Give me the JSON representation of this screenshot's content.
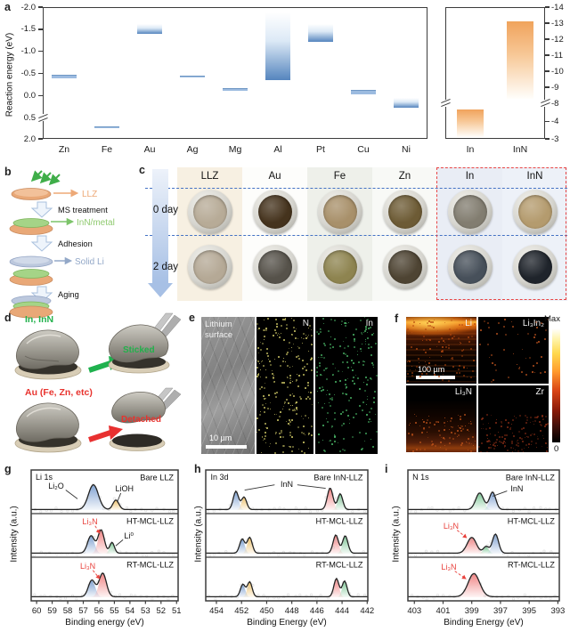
{
  "labels": {
    "a": "a",
    "b": "b",
    "c": "c",
    "d": "d",
    "e": "e",
    "f": "f",
    "g": "g",
    "h": "h",
    "i": "i"
  },
  "chart_data": [
    {
      "id": "panel-a-metal-reaction-energy",
      "type": "bar",
      "ylabel": "Reaction energy (eV)",
      "categories": [
        "Zn",
        "Fe",
        "Au",
        "Ag",
        "Mg",
        "Al",
        "Pt",
        "Cu",
        "Ni"
      ],
      "bar_ranges_eV": [
        [
          -0.48,
          -0.4
        ],
        [
          1.12,
          1.18
        ],
        [
          -1.62,
          -1.4
        ],
        [
          -0.45,
          -0.42
        ],
        [
          -0.17,
          -0.1
        ],
        [
          -1.88,
          -0.35
        ],
        [
          -1.62,
          -1.22
        ],
        [
          -0.13,
          -0.03
        ],
        [
          0.05,
          0.28
        ]
      ],
      "yticks": [
        -2.0,
        -1.5,
        -1.0,
        -0.5,
        0.0,
        0.5,
        2.0
      ],
      "tick_decimals": 1,
      "scale_segments": [
        {
          "v0": -2.0,
          "v1": 0.5,
          "f": 0.84
        },
        {
          "v0": 0.5,
          "v1": 2.0,
          "f": 0.16
        }
      ],
      "break_fracs": [
        0.84
      ],
      "axis_note": "inverted axis, negative up, axis break between 0.5 and 2.0",
      "bar_top_color": "#ffffff",
      "bar_mid_color": "#dce9f6",
      "bar_bottom_color": "#5585be"
    },
    {
      "id": "panel-a-in-inn-reaction-energy",
      "type": "bar",
      "categories": [
        "In",
        "InN"
      ],
      "bar_ranges_eV": [
        [
          -6.6,
          -3.12
        ],
        [
          -13.1,
          -8.3
        ]
      ],
      "yticks": [
        -14,
        -13,
        -12,
        -11,
        -10,
        -9,
        -8,
        -4,
        -3
      ],
      "tick_decimals": 0,
      "scale_segments": [
        {
          "v0": -14,
          "v1": -8,
          "f": 0.73
        },
        {
          "v0": -8,
          "v1": -4,
          "f": 0.14
        },
        {
          "v0": -4,
          "v1": -3,
          "f": 0.13
        }
      ],
      "break_fracs": [
        0.73
      ],
      "axis_note": "right-side axis, axis break between -8 and -4",
      "bar_top_color": "#f0a35c",
      "bar_mid_color": "#f7c795",
      "bar_bottom_color": "#fffefb"
    },
    {
      "id": "xps-li-1s",
      "type": "area",
      "xlabel": "Binding energy (eV)",
      "ylabel": "Intensity (a.u.)",
      "x_domain": [
        60.35,
        50.9
      ],
      "xticks": [
        60,
        59,
        58,
        57,
        56,
        55,
        54,
        53,
        52,
        51
      ],
      "subpanels": [
        {
          "name": "Bare LLZ",
          "peaks": [
            {
              "assign": "Li₂O",
              "center": 56.35,
              "fwhm": 1.5,
              "height": 0.6,
              "color": "blue"
            },
            {
              "assign": "LiOH",
              "center": 54.9,
              "fwhm": 0.9,
              "height": 0.23,
              "color": "yellow"
            }
          ],
          "annotations": [
            {
              "text": "Li 1s",
              "fx": 0.03,
              "fy": 0.18,
              "anchor": "start",
              "color": "#111"
            },
            {
              "text": "Bare LLZ",
              "fx": 0.97,
              "fy": 0.18,
              "anchor": "end",
              "color": "#111"
            },
            {
              "text": "Li₂O",
              "fx": 0.17,
              "fy": 0.38,
              "anchor": "middle",
              "color": "#111",
              "line": [
                0.235,
                0.46,
                0.315,
                0.66
              ]
            },
            {
              "text": "LiOH",
              "fx": 0.635,
              "fy": 0.44,
              "anchor": "middle",
              "color": "#111",
              "line": [
                0.61,
                0.53,
                0.585,
                0.74
              ]
            }
          ]
        },
        {
          "name": "HT-MCL-LLZ",
          "peaks": [
            {
              "assign": "Li₂O",
              "center": 56.5,
              "fwhm": 1.05,
              "height": 0.42,
              "color": "blue"
            },
            {
              "assign": "Li₃N",
              "center": 55.85,
              "fwhm": 0.95,
              "height": 0.56,
              "color": "red"
            },
            {
              "assign": "Li⁰",
              "center": 55.15,
              "fwhm": 0.7,
              "height": 0.26,
              "color": "green"
            }
          ],
          "annotations": [
            {
              "text": "HT-MCL-LLZ",
              "fx": 0.97,
              "fy": 0.18,
              "anchor": "end",
              "color": "#111"
            },
            {
              "text": "Li₃N",
              "fx": 0.4,
              "fy": 0.2,
              "anchor": "middle",
              "color": "#e8413c",
              "line": [
                0.435,
                0.28,
                0.468,
                0.46
              ],
              "line_color": "#e8413c",
              "dashed": true,
              "arrow": true
            },
            {
              "text": "Li⁰",
              "fx": 0.665,
              "fy": 0.52,
              "anchor": "middle",
              "color": "#111",
              "line": [
                0.625,
                0.6,
                0.575,
                0.74
              ]
            }
          ]
        },
        {
          "name": "RT-MCL-LLZ",
          "peaks": [
            {
              "assign": "Li₂O",
              "center": 56.45,
              "fwhm": 1.05,
              "height": 0.4,
              "color": "blue"
            },
            {
              "assign": "Li₃N",
              "center": 55.75,
              "fwhm": 1.1,
              "height": 0.57,
              "color": "red"
            }
          ],
          "annotations": [
            {
              "text": "RT-MCL-LLZ",
              "fx": 0.97,
              "fy": 0.18,
              "anchor": "end",
              "color": "#111"
            },
            {
              "text": "Li₃N",
              "fx": 0.385,
              "fy": 0.22,
              "anchor": "middle",
              "color": "#e8413c",
              "line": [
                0.42,
                0.3,
                0.468,
                0.5
              ],
              "line_color": "#e8413c",
              "dashed": true,
              "arrow": true
            }
          ]
        }
      ]
    },
    {
      "id": "xps-in-3d",
      "type": "area",
      "xlabel": "Binding Energy (eV)",
      "ylabel": "Intensity (a.u.)",
      "x_domain": [
        454.85,
        441.95
      ],
      "xticks": [
        454,
        452,
        450,
        448,
        446,
        444,
        442
      ],
      "subpanels": [
        {
          "name": "Bare InN-LLZ",
          "peaks": [
            {
              "center": 452.45,
              "fwhm": 1.0,
              "height": 0.44,
              "color": "blue"
            },
            {
              "center": 451.8,
              "fwhm": 0.95,
              "height": 0.3,
              "color": "yellow"
            },
            {
              "center": 444.95,
              "fwhm": 1.05,
              "height": 0.52,
              "color": "red"
            },
            {
              "center": 444.15,
              "fwhm": 0.95,
              "height": 0.38,
              "color": "green"
            }
          ],
          "annotations": [
            {
              "text": "In 3d",
              "fx": 0.03,
              "fy": 0.18,
              "anchor": "start",
              "color": "#111"
            },
            {
              "text": "Bare InN-LLZ",
              "fx": 0.97,
              "fy": 0.18,
              "anchor": "end",
              "color": "#111"
            },
            {
              "text": "InN",
              "fx": 0.5,
              "fy": 0.34,
              "anchor": "middle",
              "color": "#111",
              "line": [
                0.425,
                0.34,
                0.24,
                0.46
              ],
              "line2": [
                0.565,
                0.34,
                0.74,
                0.42
              ]
            }
          ]
        },
        {
          "name": "HT-MCL-LLZ",
          "peaks": [
            {
              "center": 451.95,
              "fwhm": 0.95,
              "height": 0.34,
              "color": "blue"
            },
            {
              "center": 451.35,
              "fwhm": 0.95,
              "height": 0.38,
              "color": "yellow"
            },
            {
              "center": 444.5,
              "fwhm": 1.0,
              "height": 0.44,
              "color": "red"
            },
            {
              "center": 443.75,
              "fwhm": 1.0,
              "height": 0.42,
              "color": "green"
            }
          ],
          "annotations": [
            {
              "text": "HT-MCL-LLZ",
              "fx": 0.97,
              "fy": 0.18,
              "anchor": "end",
              "color": "#111"
            }
          ]
        },
        {
          "name": "RT-MCL-LLZ",
          "peaks": [
            {
              "center": 451.9,
              "fwhm": 0.9,
              "height": 0.3,
              "color": "blue"
            },
            {
              "center": 451.35,
              "fwhm": 0.9,
              "height": 0.36,
              "color": "yellow"
            },
            {
              "center": 444.45,
              "fwhm": 0.95,
              "height": 0.44,
              "color": "red"
            },
            {
              "center": 443.8,
              "fwhm": 0.9,
              "height": 0.38,
              "color": "green"
            }
          ],
          "annotations": [
            {
              "text": "RT-MCL-LLZ",
              "fx": 0.97,
              "fy": 0.18,
              "anchor": "end",
              "color": "#111"
            }
          ]
        }
      ]
    },
    {
      "id": "xps-n-1s",
      "type": "area",
      "xlabel": "Binding Energy (eV)",
      "ylabel": "Intensity (a.u.)",
      "x_domain": [
        403.45,
        392.9
      ],
      "xticks": [
        403,
        401,
        399,
        397,
        395,
        393
      ],
      "subpanels": [
        {
          "name": "Bare InN-LLZ",
          "peaks": [
            {
              "center": 398.45,
              "fwhm": 1.3,
              "height": 0.4,
              "color": "green"
            },
            {
              "center": 397.55,
              "fwhm": 1.05,
              "height": 0.42,
              "color": "blue"
            }
          ],
          "annotations": [
            {
              "text": "N 1s",
              "fx": 0.03,
              "fy": 0.18,
              "anchor": "start",
              "color": "#111"
            },
            {
              "text": "Bare InN-LLZ",
              "fx": 0.97,
              "fy": 0.18,
              "anchor": "end",
              "color": "#111"
            },
            {
              "text": "InN",
              "fx": 0.72,
              "fy": 0.44,
              "anchor": "middle",
              "color": "#111",
              "line": [
                0.655,
                0.48,
                0.56,
                0.6
              ]
            }
          ]
        },
        {
          "name": "HT-MCL-LLZ",
          "peaks": [
            {
              "assign": "Li₃N",
              "center": 399.0,
              "fwhm": 1.5,
              "height": 0.38,
              "color": "red"
            },
            {
              "center": 398.0,
              "fwhm": 0.9,
              "height": 0.16,
              "color": "green"
            },
            {
              "center": 397.35,
              "fwhm": 1.0,
              "height": 0.46,
              "color": "blue"
            }
          ],
          "annotations": [
            {
              "text": "HT-MCL-LLZ",
              "fx": 0.97,
              "fy": 0.18,
              "anchor": "end",
              "color": "#111"
            },
            {
              "text": "Li₃N",
              "fx": 0.285,
              "fy": 0.3,
              "anchor": "middle",
              "color": "#e8413c",
              "line": [
                0.325,
                0.38,
                0.39,
                0.56
              ],
              "line_color": "#e8413c",
              "dashed": true,
              "arrow": true
            }
          ]
        },
        {
          "name": "RT-MCL-LLZ",
          "peaks": [
            {
              "assign": "Li₃N",
              "center": 398.85,
              "fwhm": 1.9,
              "height": 0.56,
              "color": "red"
            }
          ],
          "annotations": [
            {
              "text": "RT-MCL-LLZ",
              "fx": 0.97,
              "fy": 0.18,
              "anchor": "end",
              "color": "#111"
            },
            {
              "text": "Li₃N",
              "fx": 0.27,
              "fy": 0.24,
              "anchor": "middle",
              "color": "#e8413c",
              "line": [
                0.31,
                0.32,
                0.385,
                0.5
              ],
              "line_color": "#e8413c",
              "dashed": true,
              "arrow": true
            }
          ]
        }
      ]
    }
  ],
  "panel_b": {
    "llz_label": "LLZ",
    "ms_label": "MS treatment",
    "inn_label": "InN/metal",
    "adhesion_label": "Adhesion",
    "li_label": "Solid Li",
    "aging_label": "Aging",
    "colors": {
      "llz_text": "#eda977",
      "inn_text": "#8fca6f",
      "li_text": "#93a8c8",
      "sputter_arrow": "#3fae49"
    }
  },
  "panel_c": {
    "columns": [
      "LLZ",
      "Au",
      "Fe",
      "Zn",
      "In",
      "InN"
    ],
    "rows": [
      "0 day",
      "2 day"
    ],
    "column_bg": [
      "#f7f0e2",
      "#fdfdfb",
      "#eef0ea",
      "#f8f9f6",
      "#e9edf5",
      "#edf1f8"
    ],
    "disc_colors": [
      [
        "#b7ab97",
        "#45331d",
        "#a8906a",
        "#6d5b35",
        "#827d70",
        "#b49b6e"
      ],
      [
        "#b5a996",
        "#56524a",
        "#8e8450",
        "#4e4433",
        "#47505a",
        "#1f242b"
      ]
    ],
    "dash_color": "#4472c4",
    "highlight_color": "#e84545"
  },
  "panel_d": {
    "good_label": "In, InN",
    "good_result": "Sticked",
    "bad_label": "Au (Fe, Zn, etc)",
    "bad_result": "Detached",
    "good_color": "#21b14b",
    "bad_color": "#e8332e"
  },
  "panel_e": {
    "sem_label": "Lithium surface",
    "scale_label": "10 µm",
    "maps": [
      {
        "label": "N",
        "dot_color": "#e0d96f",
        "dots": 250
      },
      {
        "label": "In",
        "dot_color": "#4ec06c",
        "dots": 210
      }
    ]
  },
  "panel_f": {
    "maps": [
      {
        "label": "Li"
      },
      {
        "label": "Li₃In₂",
        "dot_color": "#c2551f",
        "dots": 50
      },
      {
        "label": "Li₃N",
        "dot_color": "#c1541a",
        "dots": 90
      },
      {
        "label": "Zr",
        "dot_color": "#8a2e16",
        "dots": 140
      }
    ],
    "scale_label": "100 µm",
    "colorbar_max": "Max",
    "colorbar_min": "0"
  }
}
